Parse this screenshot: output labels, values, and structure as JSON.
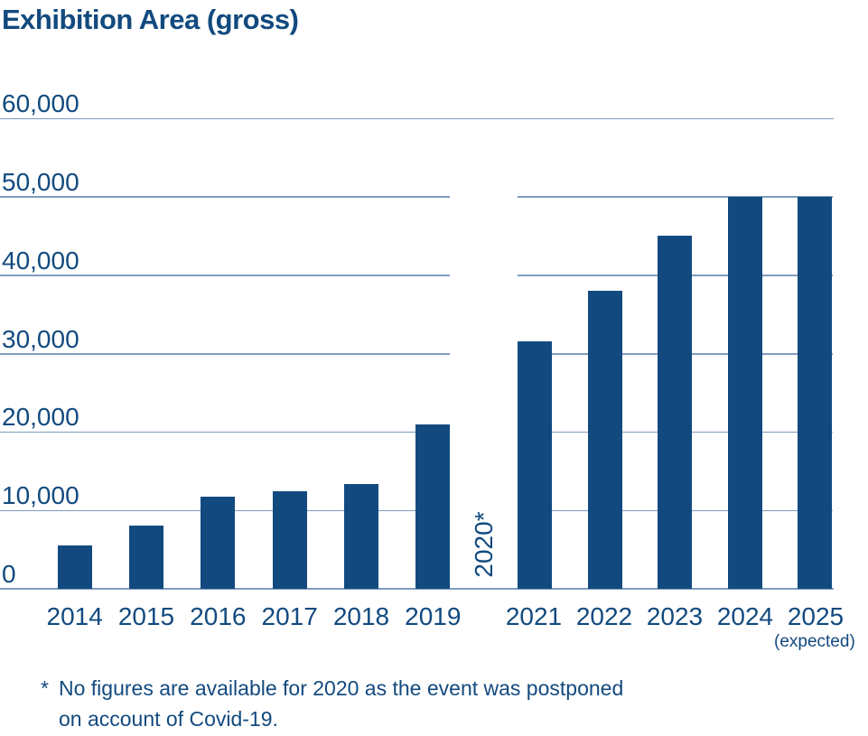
{
  "colors": {
    "primary_blue": "#124a7f",
    "gridline_blue": "#7f9cc0",
    "background": "#ffffff"
  },
  "chart_data": {
    "type": "bar",
    "title": "Exhibition Area (gross)",
    "ylim": [
      0,
      60000
    ],
    "grid": true,
    "legend": "none",
    "ytick_values": [
      0,
      10000,
      20000,
      30000,
      40000,
      50000,
      60000
    ],
    "ytick_labels": [
      "0",
      "10,000",
      "20,000",
      "30,000",
      "40,000",
      "50,000",
      "60,000"
    ],
    "bar_color": "#124a7f",
    "groups": [
      {
        "name": "2014-2019",
        "categories": [
          "2014",
          "2015",
          "2016",
          "2017",
          "2018",
          "2019"
        ],
        "values": [
          5500,
          8100,
          11700,
          12400,
          13400,
          21000
        ]
      },
      {
        "name": "2021-2025",
        "categories": [
          "2021",
          "2022",
          "2023",
          "2024",
          "2025"
        ],
        "values": [
          31500,
          38000,
          45000,
          50000,
          50000
        ],
        "last_category_note": "(expected)"
      }
    ],
    "gap_label": "2020*",
    "footnote": {
      "marker": "*",
      "line1": "No figures are available for 2020 as the event was postponed",
      "line2": "on account of Covid-19."
    }
  }
}
